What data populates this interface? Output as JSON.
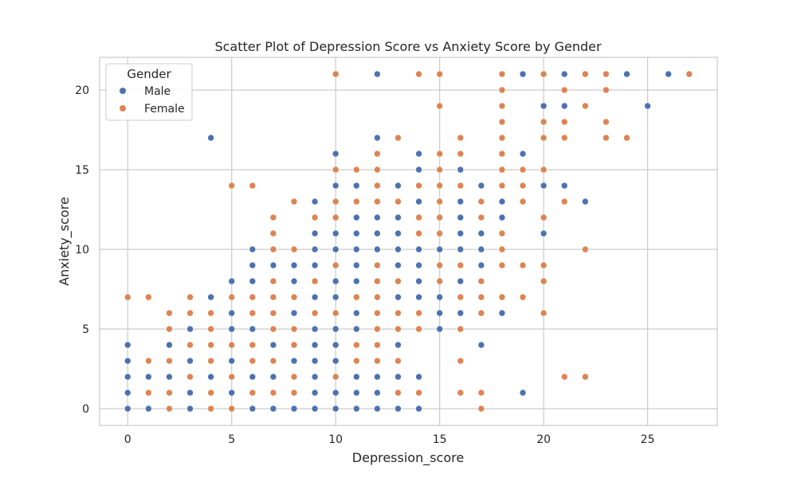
{
  "chart_data": {
    "type": "scatter",
    "title": "Scatter Plot of Depression Score vs Anxiety Score by Gender",
    "xlabel": "Depression_score",
    "ylabel": "Anxiety_score",
    "xlim": [
      -1.35,
      28.35
    ],
    "ylim": [
      -1.05,
      22.05
    ],
    "xticks": [
      0,
      5,
      10,
      15,
      20,
      25
    ],
    "yticks": [
      0,
      5,
      10,
      15,
      20
    ],
    "grid": true,
    "legend": {
      "title": "Gender",
      "placement": "top-left"
    },
    "series": [
      {
        "name": "Male",
        "color": "#4c72b0",
        "points": [
          [
            0,
            0
          ],
          [
            0,
            1
          ],
          [
            0,
            2
          ],
          [
            0,
            3
          ],
          [
            0,
            4
          ],
          [
            1,
            0
          ],
          [
            1,
            2
          ],
          [
            2,
            2
          ],
          [
            2,
            4
          ],
          [
            3,
            0
          ],
          [
            3,
            1
          ],
          [
            3,
            3
          ],
          [
            3,
            5
          ],
          [
            4,
            2
          ],
          [
            4,
            7
          ],
          [
            4,
            17
          ],
          [
            5,
            1
          ],
          [
            5,
            3
          ],
          [
            5,
            5
          ],
          [
            5,
            6
          ],
          [
            5,
            8
          ],
          [
            6,
            0
          ],
          [
            6,
            2
          ],
          [
            6,
            5
          ],
          [
            6,
            8
          ],
          [
            6,
            9
          ],
          [
            6,
            10
          ],
          [
            7,
            0
          ],
          [
            7,
            2
          ],
          [
            7,
            4
          ],
          [
            7,
            9
          ],
          [
            8,
            0
          ],
          [
            8,
            3
          ],
          [
            8,
            6
          ],
          [
            8,
            8
          ],
          [
            8,
            9
          ],
          [
            9,
            0
          ],
          [
            9,
            1
          ],
          [
            9,
            2
          ],
          [
            9,
            3
          ],
          [
            9,
            4
          ],
          [
            9,
            5
          ],
          [
            9,
            7
          ],
          [
            9,
            9
          ],
          [
            9,
            10
          ],
          [
            9,
            11
          ],
          [
            9,
            13
          ],
          [
            10,
            0
          ],
          [
            10,
            1
          ],
          [
            10,
            3
          ],
          [
            10,
            4
          ],
          [
            10,
            5
          ],
          [
            10,
            7
          ],
          [
            10,
            8
          ],
          [
            10,
            10
          ],
          [
            10,
            11
          ],
          [
            10,
            14
          ],
          [
            10,
            16
          ],
          [
            11,
            0
          ],
          [
            11,
            1
          ],
          [
            11,
            2
          ],
          [
            11,
            5
          ],
          [
            11,
            6
          ],
          [
            11,
            8
          ],
          [
            11,
            9
          ],
          [
            11,
            10
          ],
          [
            11,
            11
          ],
          [
            11,
            12
          ],
          [
            11,
            14
          ],
          [
            12,
            0
          ],
          [
            12,
            1
          ],
          [
            12,
            2
          ],
          [
            12,
            10
          ],
          [
            12,
            11
          ],
          [
            12,
            12
          ],
          [
            12,
            17
          ],
          [
            12,
            21
          ],
          [
            13,
            0
          ],
          [
            13,
            2
          ],
          [
            13,
            4
          ],
          [
            13,
            7
          ],
          [
            13,
            9
          ],
          [
            13,
            10
          ],
          [
            13,
            11
          ],
          [
            13,
            12
          ],
          [
            13,
            14
          ],
          [
            14,
            0
          ],
          [
            14,
            2
          ],
          [
            14,
            7
          ],
          [
            14,
            8
          ],
          [
            14,
            9
          ],
          [
            14,
            10
          ],
          [
            14,
            13
          ],
          [
            14,
            15
          ],
          [
            14,
            16
          ],
          [
            15,
            5
          ],
          [
            15,
            6
          ],
          [
            15,
            7
          ],
          [
            15,
            10
          ],
          [
            16,
            6
          ],
          [
            16,
            8
          ],
          [
            16,
            10
          ],
          [
            16,
            11
          ],
          [
            16,
            12
          ],
          [
            16,
            13
          ],
          [
            16,
            15
          ],
          [
            17,
            4
          ],
          [
            17,
            9
          ],
          [
            17,
            10
          ],
          [
            17,
            11
          ],
          [
            17,
            14
          ],
          [
            18,
            6
          ],
          [
            18,
            12
          ],
          [
            18,
            13
          ],
          [
            19,
            1
          ],
          [
            19,
            16
          ],
          [
            19,
            21
          ],
          [
            20,
            11
          ],
          [
            20,
            14
          ],
          [
            20,
            19
          ],
          [
            21,
            14
          ],
          [
            21,
            19
          ],
          [
            21,
            21
          ],
          [
            22,
            13
          ],
          [
            24,
            21
          ],
          [
            25,
            19
          ],
          [
            26,
            21
          ]
        ]
      },
      {
        "name": "Female",
        "color": "#dd8452",
        "points": [
          [
            0,
            7
          ],
          [
            1,
            1
          ],
          [
            1,
            3
          ],
          [
            1,
            7
          ],
          [
            2,
            0
          ],
          [
            2,
            1
          ],
          [
            2,
            3
          ],
          [
            2,
            5
          ],
          [
            2,
            6
          ],
          [
            3,
            2
          ],
          [
            3,
            4
          ],
          [
            3,
            6
          ],
          [
            3,
            7
          ],
          [
            4,
            0
          ],
          [
            4,
            1
          ],
          [
            4,
            3
          ],
          [
            4,
            4
          ],
          [
            4,
            5
          ],
          [
            4,
            6
          ],
          [
            5,
            0
          ],
          [
            5,
            2
          ],
          [
            5,
            4
          ],
          [
            5,
            7
          ],
          [
            5,
            14
          ],
          [
            6,
            1
          ],
          [
            6,
            3
          ],
          [
            6,
            4
          ],
          [
            6,
            6
          ],
          [
            6,
            7
          ],
          [
            6,
            14
          ],
          [
            7,
            1
          ],
          [
            7,
            3
          ],
          [
            7,
            5
          ],
          [
            7,
            6
          ],
          [
            7,
            7
          ],
          [
            7,
            8
          ],
          [
            7,
            10
          ],
          [
            7,
            11
          ],
          [
            7,
            12
          ],
          [
            8,
            1
          ],
          [
            8,
            2
          ],
          [
            8,
            4
          ],
          [
            8,
            5
          ],
          [
            8,
            7
          ],
          [
            8,
            10
          ],
          [
            8,
            13
          ],
          [
            9,
            6
          ],
          [
            9,
            8
          ],
          [
            9,
            12
          ],
          [
            10,
            2
          ],
          [
            10,
            6
          ],
          [
            10,
            9
          ],
          [
            10,
            12
          ],
          [
            10,
            13
          ],
          [
            10,
            15
          ],
          [
            10,
            21
          ],
          [
            11,
            3
          ],
          [
            11,
            4
          ],
          [
            11,
            7
          ],
          [
            11,
            13
          ],
          [
            11,
            15
          ],
          [
            12,
            3
          ],
          [
            12,
            4
          ],
          [
            12,
            5
          ],
          [
            12,
            6
          ],
          [
            12,
            7
          ],
          [
            12,
            8
          ],
          [
            12,
            9
          ],
          [
            12,
            13
          ],
          [
            12,
            14
          ],
          [
            12,
            15
          ],
          [
            12,
            16
          ],
          [
            13,
            1
          ],
          [
            13,
            3
          ],
          [
            13,
            5
          ],
          [
            13,
            6
          ],
          [
            13,
            8
          ],
          [
            13,
            13
          ],
          [
            13,
            17
          ],
          [
            14,
            1
          ],
          [
            14,
            5
          ],
          [
            14,
            6
          ],
          [
            14,
            11
          ],
          [
            14,
            12
          ],
          [
            14,
            14
          ],
          [
            14,
            21
          ],
          [
            15,
            8
          ],
          [
            15,
            9
          ],
          [
            15,
            11
          ],
          [
            15,
            12
          ],
          [
            15,
            13
          ],
          [
            15,
            14
          ],
          [
            15,
            15
          ],
          [
            15,
            16
          ],
          [
            15,
            19
          ],
          [
            15,
            21
          ],
          [
            16,
            1
          ],
          [
            16,
            3
          ],
          [
            16,
            5
          ],
          [
            16,
            7
          ],
          [
            16,
            9
          ],
          [
            16,
            14
          ],
          [
            16,
            16
          ],
          [
            16,
            17
          ],
          [
            17,
            0
          ],
          [
            17,
            1
          ],
          [
            17,
            6
          ],
          [
            17,
            7
          ],
          [
            17,
            8
          ],
          [
            17,
            12
          ],
          [
            17,
            13
          ],
          [
            18,
            7
          ],
          [
            18,
            9
          ],
          [
            18,
            10
          ],
          [
            18,
            11
          ],
          [
            18,
            14
          ],
          [
            18,
            15
          ],
          [
            18,
            16
          ],
          [
            18,
            17
          ],
          [
            18,
            18
          ],
          [
            18,
            19
          ],
          [
            18,
            20
          ],
          [
            18,
            21
          ],
          [
            19,
            7
          ],
          [
            19,
            9
          ],
          [
            19,
            13
          ],
          [
            19,
            14
          ],
          [
            19,
            15
          ],
          [
            20,
            6
          ],
          [
            20,
            8
          ],
          [
            20,
            9
          ],
          [
            20,
            12
          ],
          [
            20,
            15
          ],
          [
            20,
            17
          ],
          [
            20,
            18
          ],
          [
            20,
            21
          ],
          [
            21,
            2
          ],
          [
            21,
            13
          ],
          [
            21,
            17
          ],
          [
            21,
            18
          ],
          [
            21,
            20
          ],
          [
            22,
            2
          ],
          [
            22,
            10
          ],
          [
            22,
            19
          ],
          [
            22,
            21
          ],
          [
            23,
            17
          ],
          [
            23,
            18
          ],
          [
            23,
            20
          ],
          [
            23,
            21
          ],
          [
            24,
            17
          ],
          [
            27,
            21
          ]
        ]
      }
    ]
  }
}
